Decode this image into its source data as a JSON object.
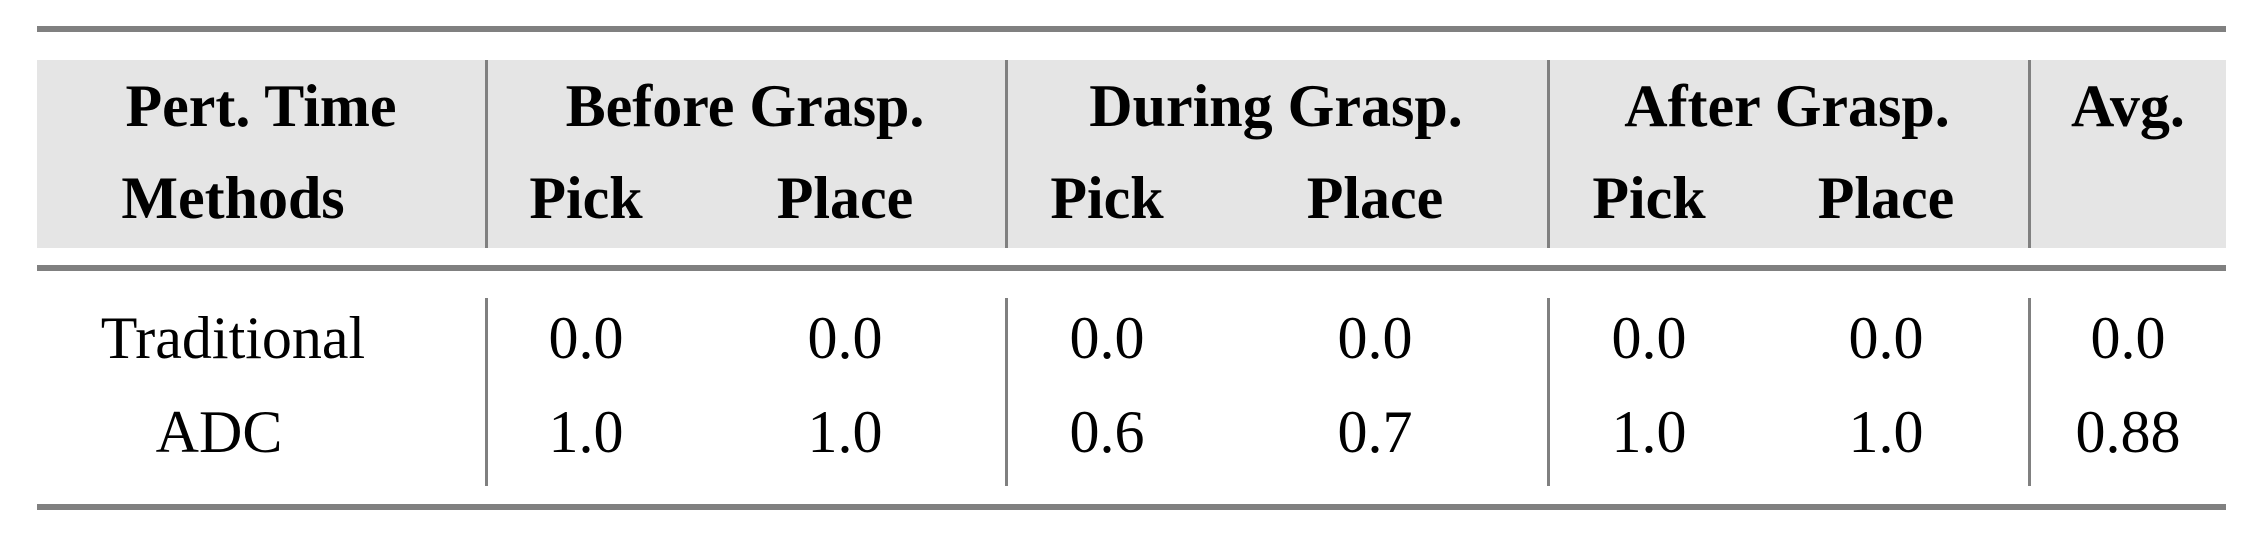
{
  "header": {
    "row1": [
      "Pert. Time",
      "Before Grasp.",
      "During Grasp.",
      "After Grasp.",
      "Avg."
    ],
    "row2": [
      "Methods",
      "Pick",
      "Place",
      "Pick",
      "Place",
      "Pick",
      "Place"
    ]
  },
  "rows": [
    {
      "method": "Traditional",
      "values": [
        "0.0",
        "0.0",
        "0.0",
        "0.0",
        "0.0",
        "0.0",
        "0.0"
      ]
    },
    {
      "method": "ADC",
      "values": [
        "1.0",
        "1.0",
        "0.6",
        "0.7",
        "1.0",
        "1.0",
        "0.88"
      ]
    }
  ],
  "colors": {
    "rule": "#808080",
    "header_bg": "#e5e5e5"
  }
}
